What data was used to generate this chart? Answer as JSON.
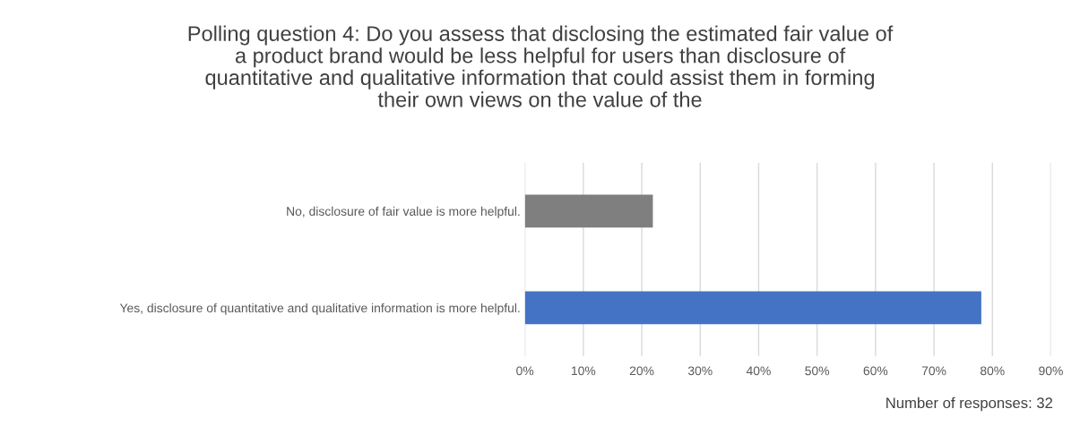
{
  "chart_data": {
    "type": "bar",
    "orientation": "horizontal",
    "title": "Polling question 4: Do you assess that disclosing the estimated fair value of\na product brand would be less helpful for users than disclosure of\nquantitative and qualitative information that could assist them in forming\ntheir own views on the value of the",
    "categories": [
      "No, disclosure of fair value is more helpful.",
      "Yes, disclosure of quantitative and qualitative information is more helpful."
    ],
    "values": [
      21.9,
      78.1
    ],
    "colors": [
      "#7f7f7f",
      "#4472c4"
    ],
    "xlim": [
      0,
      90
    ],
    "xticks": [
      {
        "value": 0,
        "label": "0%"
      },
      {
        "value": 10,
        "label": "10%"
      },
      {
        "value": 20,
        "label": "20%"
      },
      {
        "value": 30,
        "label": "30%"
      },
      {
        "value": 40,
        "label": "40%"
      },
      {
        "value": 50,
        "label": "50%"
      },
      {
        "value": 60,
        "label": "60%"
      },
      {
        "value": 70,
        "label": "70%"
      },
      {
        "value": 80,
        "label": "80%"
      },
      {
        "value": 90,
        "label": "90%"
      }
    ],
    "grid": "x",
    "annotations": [
      "Number of responses: 32"
    ]
  }
}
